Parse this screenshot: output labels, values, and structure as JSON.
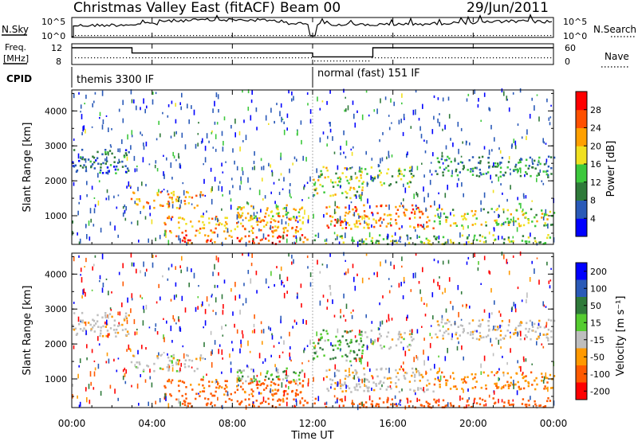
{
  "header": {
    "station": "Christmas Valley East (fitACF)",
    "beam": "Beam 00",
    "date": "29/Jun/2011"
  },
  "side_labels": {
    "nsky": "N.Sky",
    "nsearch": "N.Search",
    "freq_line1": "Freq.",
    "freq_line2": "[MHz]",
    "nave": "Nave",
    "cpid": "CPID",
    "noise_tick_high": "10^5",
    "noise_tick_low": "10^0",
    "freq_tick_high": "12",
    "freq_tick_low": "8",
    "nave_tick_high": "60",
    "nave_tick_low": "0"
  },
  "cpid_modes": [
    {
      "label": "themis 3300 IF",
      "start_ut": 0,
      "end_ut": 12
    },
    {
      "label": "normal (fast) 151 IF",
      "start_ut": 12,
      "end_ut": 24
    }
  ],
  "xaxis": {
    "title": "Time UT",
    "ticks": [
      "00:00",
      "04:00",
      "08:00",
      "12:00",
      "16:00",
      "20:00",
      "00:00"
    ]
  },
  "panels": {
    "ylabel": "Slant Range [km]",
    "yticks": [
      "4000",
      "3000",
      "2000",
      "1000"
    ],
    "power_label": "Power [dB]",
    "power_ticks": [
      "28",
      "24",
      "20",
      "16",
      "12",
      "8",
      "4"
    ],
    "velocity_label": "Velocity [m s⁻¹]",
    "velocity_ticks": [
      "200",
      "100",
      "50",
      "15",
      "-15",
      "-50",
      "-100",
      "-200"
    ]
  },
  "colors": {
    "power_scale": [
      "#0000ff",
      "#2a5ab8",
      "#2f7a3a",
      "#3cc83c",
      "#f0e020",
      "#ffa000",
      "#ff5000",
      "#ff0000"
    ],
    "velocity_scale": [
      "#0000ff",
      "#2a5ab8",
      "#2f7a3a",
      "#55cc30",
      "#bebebe",
      "#ff9900",
      "#ff5a00",
      "#ff0000"
    ],
    "ground_scatter": "#bebebe"
  },
  "chart_data": {
    "type": "heatmap",
    "x_range_ut_hours": [
      0,
      24
    ],
    "y_range_km": [
      180,
      4600
    ],
    "power_range_db": [
      0,
      32
    ],
    "velocity_range": [
      -250,
      250
    ],
    "freq_mhz": [
      {
        "start_ut": 0,
        "end_ut": 3,
        "value": 11.5
      },
      {
        "start_ut": 3,
        "end_ut": 12,
        "value": 10.4
      },
      {
        "start_ut": 12,
        "end_ut": 15,
        "value": 9.6
      },
      {
        "start_ut": 15,
        "end_ut": 24,
        "value": 11.5
      }
    ],
    "scatter_bands": [
      {
        "t0": 0.0,
        "t1": 2.9,
        "r0": 2200,
        "r1": 2900,
        "level_db": 8,
        "velocity": -5
      },
      {
        "t0": 2.9,
        "t1": 6.5,
        "r0": 1200,
        "r1": 1700,
        "level_db": 22,
        "velocity": 0
      },
      {
        "t0": 4.5,
        "t1": 11.5,
        "r0": 500,
        "r1": 1000,
        "level_db": 22,
        "velocity": -60
      },
      {
        "t0": 8.0,
        "t1": 11.5,
        "r0": 900,
        "r1": 1300,
        "level_db": 18,
        "velocity": 20
      },
      {
        "t0": 5.0,
        "t1": 11.8,
        "r0": 180,
        "r1": 450,
        "level_db": 26,
        "velocity": -80
      },
      {
        "t0": 12.0,
        "t1": 14.5,
        "r0": 1500,
        "r1": 2400,
        "level_db": 16,
        "velocity": 30
      },
      {
        "t0": 12.5,
        "t1": 18.0,
        "r0": 600,
        "r1": 1300,
        "level_db": 24,
        "velocity": -5
      },
      {
        "t0": 14.5,
        "t1": 17.0,
        "r0": 1800,
        "r1": 2400,
        "level_db": 14,
        "velocity": 0
      },
      {
        "t0": 18.0,
        "t1": 24.0,
        "r0": 2100,
        "r1": 2700,
        "level_db": 10,
        "velocity": -5
      },
      {
        "t0": 18.0,
        "t1": 24.0,
        "r0": 700,
        "r1": 1200,
        "level_db": 16,
        "velocity": -40
      },
      {
        "t0": 12.0,
        "t1": 24.0,
        "r0": 180,
        "r1": 450,
        "level_db": 14,
        "velocity": -80
      }
    ]
  }
}
